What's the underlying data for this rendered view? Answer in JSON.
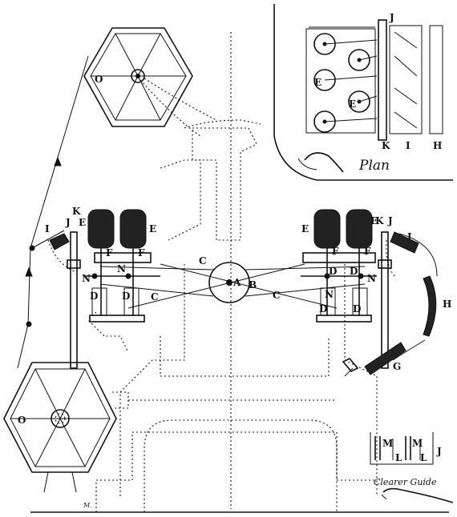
{
  "labels": {
    "A": "A",
    "B": "B",
    "C": "C",
    "D": "D",
    "E": "E",
    "F": "F",
    "G": "G",
    "H": "H",
    "I": "I",
    "J": "J",
    "K": "K",
    "L": "L",
    "M": "M",
    "N": "N",
    "O": "O"
  },
  "plan_caption": "Plan",
  "clearer_caption": "Clearer Guide",
  "signature": "M.",
  "colors": {
    "ink": "#111111",
    "paper": "#ffffff"
  }
}
